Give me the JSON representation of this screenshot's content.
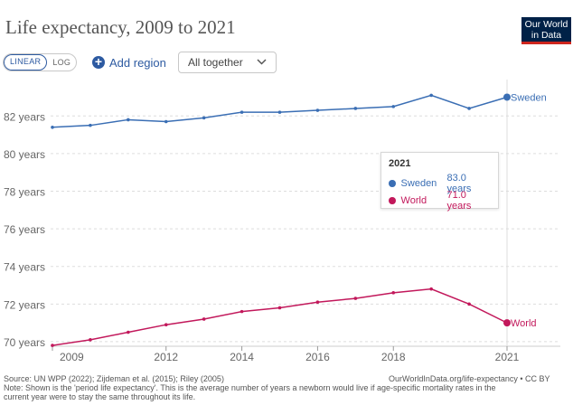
{
  "header": {
    "title": "Life expectancy, 2009 to 2021",
    "logo_line1": "Our World",
    "logo_line2": "in Data"
  },
  "controls": {
    "linear_label": "LINEAR",
    "log_label": "LOG",
    "add_region_label": "Add region",
    "dropdown_value": "All together",
    "scale_selected": "LINEAR"
  },
  "tooltip": {
    "year": "2021",
    "rows": [
      {
        "name": "Sweden",
        "value": "83.0 years",
        "color": "#3a6eb4"
      },
      {
        "name": "World",
        "value": "71.0 years",
        "color": "#c2185b"
      }
    ]
  },
  "footer": {
    "source": "Source: UN WPP (2022); Zijdeman et al. (2015); Riley (2005)",
    "url": "OurWorldInData.org/life-expectancy • CC BY",
    "note_line1": "Note: Shown is the 'period life expectancy'. This is the average number of years a newborn would live if age-specific mortality rates in the",
    "note_line2": "current year were to stay the same throughout its life."
  },
  "chart_data": {
    "type": "line",
    "x": [
      2009,
      2010,
      2011,
      2012,
      2013,
      2014,
      2015,
      2016,
      2017,
      2018,
      2019,
      2020,
      2021
    ],
    "x_ticks": [
      2009,
      2012,
      2014,
      2016,
      2018,
      2021
    ],
    "y_ticks": [
      70,
      72,
      74,
      76,
      78,
      80,
      82
    ],
    "ylim": [
      69.9,
      83.6
    ],
    "xlim": [
      2009,
      2021
    ],
    "grid": "horizontal dashed",
    "series": [
      {
        "name": "Sweden",
        "color": "#3a6eb4",
        "values": [
          81.4,
          81.5,
          81.8,
          81.7,
          81.9,
          82.2,
          82.2,
          82.3,
          82.4,
          82.5,
          83.1,
          82.4,
          83.0
        ]
      },
      {
        "name": "World",
        "color": "#c2185b",
        "values": [
          69.8,
          70.1,
          70.5,
          70.9,
          71.2,
          71.6,
          71.8,
          72.1,
          72.3,
          72.6,
          72.8,
          72.0,
          71.0
        ]
      }
    ]
  }
}
